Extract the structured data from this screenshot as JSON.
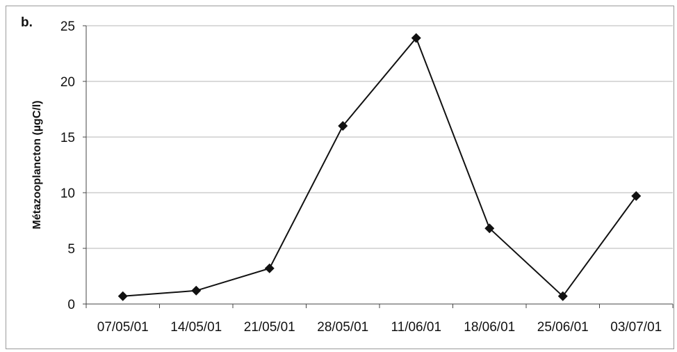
{
  "panel_label": "b.",
  "chart_data": {
    "type": "line",
    "title": "",
    "xlabel": "",
    "ylabel": "Métazooplancton (µgC/l)",
    "categories": [
      "07/05/01",
      "14/05/01",
      "21/05/01",
      "28/05/01",
      "11/06/01",
      "18/06/01",
      "25/06/01",
      "03/07/01"
    ],
    "series": [
      {
        "values": [
          0.7,
          1.2,
          3.2,
          16.0,
          23.9,
          6.8,
          0.7,
          9.7
        ]
      }
    ],
    "ylim": [
      0,
      25
    ],
    "yticks": [
      0,
      5,
      10,
      15,
      20,
      25
    ],
    "grid": true,
    "legend": "none",
    "colors": {
      "line": "#111111",
      "marker": "#111111",
      "grid": "#b5b5b5",
      "axis": "#444444"
    }
  }
}
